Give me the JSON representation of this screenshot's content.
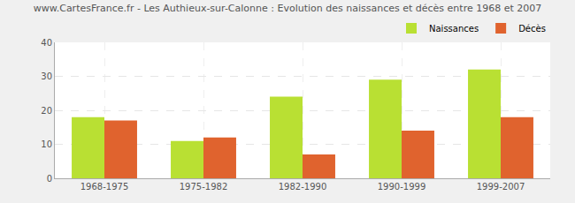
{
  "chart_data": {
    "type": "bar",
    "title": "www.CartesFrance.fr - Les Authieux-sur-Calonne : Evolution des naissances et décès entre 1968 et 2007",
    "categories": [
      "1968-1975",
      "1975-1982",
      "1982-1990",
      "1990-1999",
      "1999-2007"
    ],
    "series": [
      {
        "name": "Naissances",
        "color": "#b9e033",
        "values": [
          18,
          11,
          24,
          29,
          32
        ]
      },
      {
        "name": "Décès",
        "color": "#e0632e",
        "values": [
          17,
          12,
          7,
          14,
          18
        ]
      }
    ],
    "ylim": [
      0,
      40
    ],
    "yticks": [
      0,
      10,
      20,
      30,
      40
    ],
    "grid": true,
    "legend": "top right"
  }
}
